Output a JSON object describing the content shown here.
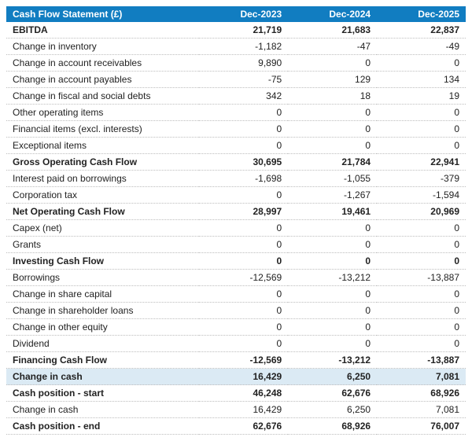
{
  "header": {
    "title": "Cash Flow Statement (£)",
    "periods": [
      "Dec-2023",
      "Dec-2024",
      "Dec-2025"
    ]
  },
  "rows": [
    {
      "label": "EBITDA",
      "v": [
        "21,719",
        "21,683",
        "22,837"
      ],
      "style": "bold"
    },
    {
      "label": "Change in inventory",
      "v": [
        "-1,182",
        "-47",
        "-49"
      ],
      "style": ""
    },
    {
      "label": "Change in account receivables",
      "v": [
        "9,890",
        "0",
        "0"
      ],
      "style": ""
    },
    {
      "label": "Change in account payables",
      "v": [
        "-75",
        "129",
        "134"
      ],
      "style": ""
    },
    {
      "label": "Change in fiscal and social debts",
      "v": [
        "342",
        "18",
        "19"
      ],
      "style": ""
    },
    {
      "label": "Other operating items",
      "v": [
        "0",
        "0",
        "0"
      ],
      "style": ""
    },
    {
      "label": "Financial items (excl. interests)",
      "v": [
        "0",
        "0",
        "0"
      ],
      "style": ""
    },
    {
      "label": "Exceptional items",
      "v": [
        "0",
        "0",
        "0"
      ],
      "style": ""
    },
    {
      "label": "Gross Operating Cash Flow",
      "v": [
        "30,695",
        "21,784",
        "22,941"
      ],
      "style": "bold"
    },
    {
      "label": "Interest paid on borrowings",
      "v": [
        "-1,698",
        "-1,055",
        "-379"
      ],
      "style": ""
    },
    {
      "label": "Corporation tax",
      "v": [
        "0",
        "-1,267",
        "-1,594"
      ],
      "style": ""
    },
    {
      "label": "Net Operating Cash Flow",
      "v": [
        "28,997",
        "19,461",
        "20,969"
      ],
      "style": "bold"
    },
    {
      "label": "Capex (net)",
      "v": [
        "0",
        "0",
        "0"
      ],
      "style": ""
    },
    {
      "label": "Grants",
      "v": [
        "0",
        "0",
        "0"
      ],
      "style": ""
    },
    {
      "label": "Investing Cash Flow",
      "v": [
        "0",
        "0",
        "0"
      ],
      "style": "bold"
    },
    {
      "label": "Borrowings",
      "v": [
        "-12,569",
        "-13,212",
        "-13,887"
      ],
      "style": ""
    },
    {
      "label": "Change in share capital",
      "v": [
        "0",
        "0",
        "0"
      ],
      "style": ""
    },
    {
      "label": "Change in shareholder loans",
      "v": [
        "0",
        "0",
        "0"
      ],
      "style": ""
    },
    {
      "label": "Change in other equity",
      "v": [
        "0",
        "0",
        "0"
      ],
      "style": ""
    },
    {
      "label": "Dividend",
      "v": [
        "0",
        "0",
        "0"
      ],
      "style": ""
    },
    {
      "label": "Financing Cash Flow",
      "v": [
        "-12,569",
        "-13,212",
        "-13,887"
      ],
      "style": "bold"
    },
    {
      "label": "Change in cash",
      "v": [
        "16,429",
        "6,250",
        "7,081"
      ],
      "style": "highlight"
    },
    {
      "label": "Cash position - start",
      "v": [
        "46,248",
        "62,676",
        "68,926"
      ],
      "style": "bold"
    },
    {
      "label": "Change in cash",
      "v": [
        "16,429",
        "6,250",
        "7,081"
      ],
      "style": ""
    },
    {
      "label": "Cash position - end",
      "v": [
        "62,676",
        "68,926",
        "76,007"
      ],
      "style": "bold"
    }
  ]
}
